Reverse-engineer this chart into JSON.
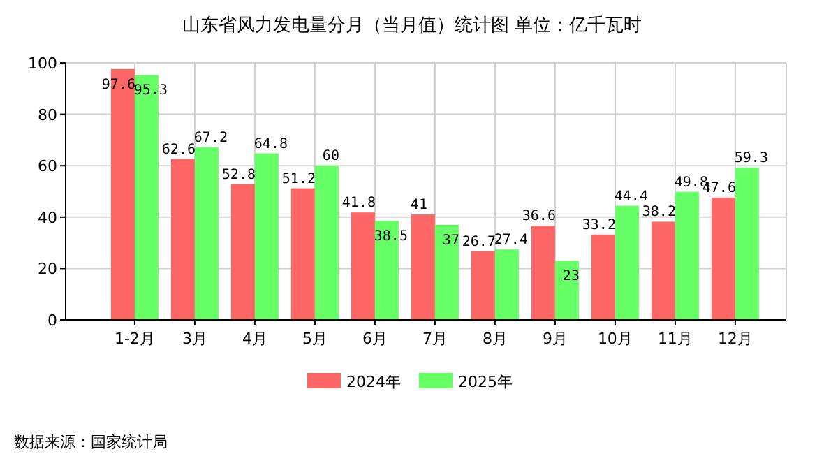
{
  "chart_data": {
    "type": "bar",
    "title": "山东省风力发电量分月（当月值）统计图 单位：亿千瓦时",
    "categories": [
      "1-2月",
      "3月",
      "4月",
      "5月",
      "6月",
      "7月",
      "8月",
      "9月",
      "10月",
      "11月",
      "12月"
    ],
    "series": [
      {
        "name": "2024年",
        "color": "#ff6666",
        "values": [
          97.6,
          62.6,
          52.8,
          51.2,
          41.8,
          41,
          26.7,
          36.6,
          33.2,
          38.2,
          47.6
        ]
      },
      {
        "name": "2025年",
        "color": "#66ff66",
        "values": [
          95.3,
          67.2,
          64.8,
          60,
          38.5,
          37,
          27.4,
          23,
          44.4,
          49.8,
          59.3
        ]
      }
    ],
    "ylim": [
      0,
      100
    ],
    "yticks": [
      0,
      20,
      40,
      60,
      80,
      100
    ],
    "grid": true,
    "legend": "bottom",
    "data_labels": true,
    "annotations": [
      "数据来源：国家统计局"
    ]
  }
}
